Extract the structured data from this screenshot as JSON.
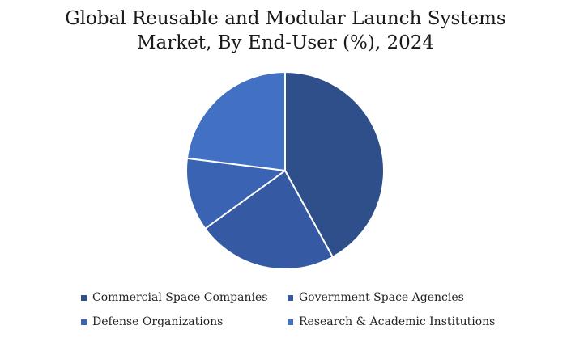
{
  "chart_data": {
    "type": "pie",
    "title": [
      "Global Reusable and Modular Launch Systems",
      "Market, By End-User (%), 2024"
    ],
    "slices": [
      {
        "label": "Commercial Space Companies",
        "value": 42,
        "color": "#2f4f8a"
      },
      {
        "label": "Government Space Agencies",
        "value": 23,
        "color": "#3559a3"
      },
      {
        "label": "Defense Organizations",
        "value": 12,
        "color": "#3a63b3"
      },
      {
        "label": "Research & Academic Institutions",
        "value": 23,
        "color": "#4270c2"
      }
    ],
    "legend_position": "bottom"
  }
}
